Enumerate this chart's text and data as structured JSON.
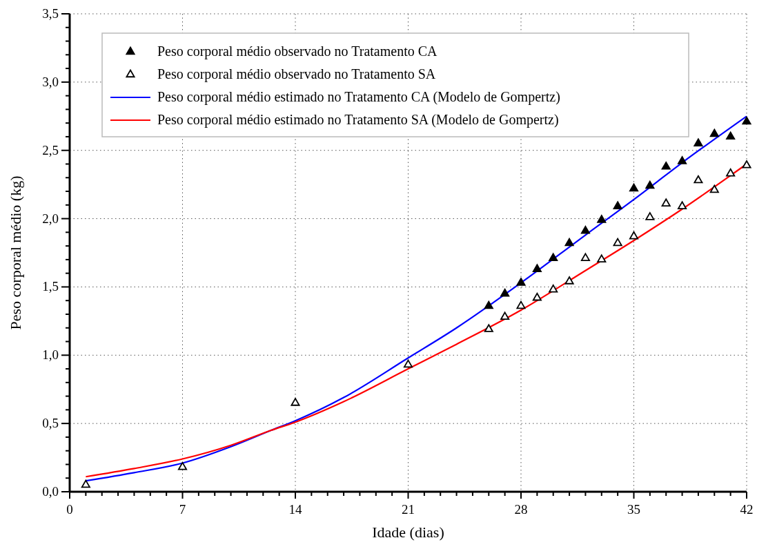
{
  "chart_data": {
    "type": "scatter",
    "xlabel": "Idade (dias)",
    "ylabel": "Peso corporal médio (kg)",
    "xlim": [
      0,
      42
    ],
    "ylim": [
      0,
      3.5
    ],
    "xticks": [
      0,
      {
        "value": 1,
        "label": null
      },
      {
        "value": 2,
        "label": null
      },
      {
        "value": 3,
        "label": null
      },
      {
        "value": 4,
        "label": null
      },
      {
        "value": 5,
        "label": null
      },
      {
        "value": 6,
        "label": null
      },
      7,
      {
        "value": 8,
        "label": null
      },
      {
        "value": 9,
        "label": null
      },
      {
        "value": 10,
        "label": null
      },
      {
        "value": 11,
        "label": null
      },
      {
        "value": 12,
        "label": null
      },
      {
        "value": 13,
        "label": null
      },
      14,
      {
        "value": 15,
        "label": null
      },
      {
        "value": 16,
        "label": null
      },
      {
        "value": 17,
        "label": null
      },
      {
        "value": 18,
        "label": null
      },
      {
        "value": 19,
        "label": null
      },
      {
        "value": 20,
        "label": null
      },
      21,
      {
        "value": 22,
        "label": null
      },
      {
        "value": 23,
        "label": null
      },
      {
        "value": 24,
        "label": null
      },
      {
        "value": 25,
        "label": null
      },
      {
        "value": 26,
        "label": null
      },
      {
        "value": 27,
        "label": null
      },
      28,
      {
        "value": 29,
        "label": null
      },
      {
        "value": 30,
        "label": null
      },
      {
        "value": 31,
        "label": null
      },
      {
        "value": 32,
        "label": null
      },
      {
        "value": 33,
        "label": null
      },
      {
        "value": 34,
        "label": null
      },
      35,
      {
        "value": 36,
        "label": null
      },
      {
        "value": 37,
        "label": null
      },
      {
        "value": 38,
        "label": null
      },
      {
        "value": 39,
        "label": null
      },
      {
        "value": 40,
        "label": null
      },
      {
        "value": 41,
        "label": null
      },
      42
    ],
    "yticks": [
      {
        "value": 0,
        "label": "0,0"
      },
      {
        "value": 0.1,
        "label": null
      },
      {
        "value": 0.2,
        "label": null
      },
      {
        "value": 0.3,
        "label": null
      },
      {
        "value": 0.4,
        "label": null
      },
      {
        "value": 0.5,
        "label": "0,5"
      },
      {
        "value": 0.6,
        "label": null
      },
      {
        "value": 0.7,
        "label": null
      },
      {
        "value": 0.8,
        "label": null
      },
      {
        "value": 0.9,
        "label": null
      },
      {
        "value": 1,
        "label": "1,0"
      },
      {
        "value": 1.1,
        "label": null
      },
      {
        "value": 1.2,
        "label": null
      },
      {
        "value": 1.3,
        "label": null
      },
      {
        "value": 1.4,
        "label": null
      },
      {
        "value": 1.5,
        "label": "1,5"
      },
      {
        "value": 1.6,
        "label": null
      },
      {
        "value": 1.7,
        "label": null
      },
      {
        "value": 1.8,
        "label": null
      },
      {
        "value": 1.9,
        "label": null
      },
      {
        "value": 2,
        "label": "2,0"
      },
      {
        "value": 2.1,
        "label": null
      },
      {
        "value": 2.2,
        "label": null
      },
      {
        "value": 2.3,
        "label": null
      },
      {
        "value": 2.4,
        "label": null
      },
      {
        "value": 2.5,
        "label": "2,5"
      },
      {
        "value": 2.6,
        "label": null
      },
      {
        "value": 2.7,
        "label": null
      },
      {
        "value": 2.8,
        "label": null
      },
      {
        "value": 2.9,
        "label": null
      },
      {
        "value": 3,
        "label": "3,0"
      },
      {
        "value": 3.1,
        "label": null
      },
      {
        "value": 3.2,
        "label": null
      },
      {
        "value": 3.3,
        "label": null
      },
      {
        "value": 3.4,
        "label": null
      },
      {
        "value": 3.5,
        "label": "3,5"
      }
    ],
    "grid": true,
    "legend": "top left",
    "series": [
      {
        "name": "Peso corporal médio observado no Tratamento CA",
        "marker": "triangle",
        "color": "#000000",
        "x": [
          26,
          27,
          28,
          29,
          30,
          31,
          32,
          33,
          34,
          35,
          36,
          37,
          38,
          39,
          40,
          41,
          42
        ],
        "values": [
          1.36,
          1.45,
          1.53,
          1.63,
          1.71,
          1.82,
          1.91,
          1.99,
          2.09,
          2.22,
          2.24,
          2.38,
          2.42,
          2.55,
          2.62,
          2.6,
          2.71
        ]
      },
      {
        "name": "Peso corporal médio observado no Tratamento SA",
        "marker": "triangle",
        "color": "#000000",
        "x": [
          1,
          7,
          14,
          21,
          26,
          27,
          28,
          29,
          30,
          31,
          32,
          33,
          34,
          35,
          36,
          37,
          38,
          39,
          40,
          41,
          42
        ],
        "values": [
          0.05,
          0.18,
          0.65,
          0.93,
          1.19,
          1.28,
          1.36,
          1.42,
          1.48,
          1.54,
          1.71,
          1.7,
          1.82,
          1.87,
          2.01,
          2.11,
          2.09,
          2.28,
          2.21,
          2.33,
          2.39
        ]
      },
      {
        "name": "Peso corporal médio estimado no Tratamento CA (Modelo de Gompertz)",
        "type": "line",
        "color": "#0000ff",
        "x": [
          1,
          4,
          7,
          10,
          12.5,
          14,
          17,
          21,
          24,
          28,
          32,
          35,
          38,
          42
        ],
        "values": [
          0.08,
          0.14,
          0.21,
          0.33,
          0.45,
          0.52,
          0.69,
          0.98,
          1.2,
          1.53,
          1.88,
          2.14,
          2.41,
          2.75
        ]
      },
      {
        "name": "Peso corporal médio estimado no Tratamento SA (Modelo de Gompertz)",
        "type": "line",
        "color": "#ff0000",
        "x": [
          1,
          4,
          7,
          10,
          12.5,
          14,
          17,
          21,
          24,
          28,
          32,
          35,
          38,
          42
        ],
        "values": [
          0.11,
          0.17,
          0.24,
          0.34,
          0.45,
          0.51,
          0.66,
          0.9,
          1.08,
          1.33,
          1.62,
          1.84,
          2.07,
          2.4
        ]
      }
    ]
  }
}
